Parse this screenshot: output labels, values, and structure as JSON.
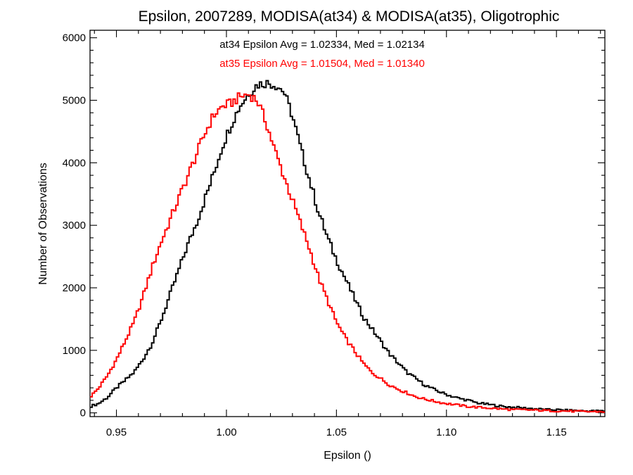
{
  "chart_data": {
    "type": "histogram-step",
    "title": "Epsilon, 2007289, MODISA(at34) & MODISA(at35), Oligotrophic",
    "xlabel": "Epsilon ()",
    "ylabel": "Number of Observations",
    "xlim": [
      0.938,
      1.172
    ],
    "ylim": [
      -60,
      6120
    ],
    "xticks": [
      {
        "value": 0.95,
        "label": "0.95"
      },
      {
        "value": 1.0,
        "label": "1.00"
      },
      {
        "value": 1.05,
        "label": "1.05"
      },
      {
        "value": 1.1,
        "label": "1.10"
      },
      {
        "value": 1.15,
        "label": "1.15"
      }
    ],
    "yticks": [
      {
        "value": 0,
        "label": "0"
      },
      {
        "value": 1000,
        "label": "1000"
      },
      {
        "value": 2000,
        "label": "2000"
      },
      {
        "value": 3000,
        "label": "3000"
      },
      {
        "value": 4000,
        "label": "4000"
      },
      {
        "value": 5000,
        "label": "5000"
      },
      {
        "value": 6000,
        "label": "6000"
      }
    ],
    "bin_width": 0.001,
    "annotations": [
      {
        "text": "at34 Epsilon Avg = 1.02334, Med = 1.02134",
        "color": "#000000"
      },
      {
        "text": "at35 Epsilon Avg = 1.01504, Med = 1.01340",
        "color": "#ff0000"
      }
    ],
    "series": [
      {
        "color": "#000000",
        "x": [
          0.938,
          0.942,
          0.946,
          0.95,
          0.954,
          0.958,
          0.962,
          0.966,
          0.97,
          0.974,
          0.978,
          0.982,
          0.986,
          0.99,
          0.994,
          0.998,
          1.002,
          1.006,
          1.01,
          1.014,
          1.018,
          1.022,
          1.026,
          1.03,
          1.034,
          1.038,
          1.042,
          1.046,
          1.05,
          1.054,
          1.058,
          1.062,
          1.066,
          1.07,
          1.074,
          1.078,
          1.082,
          1.086,
          1.09,
          1.094,
          1.098,
          1.102,
          1.106,
          1.11,
          1.114,
          1.118,
          1.122,
          1.126,
          1.13,
          1.134,
          1.138,
          1.142,
          1.146,
          1.15,
          1.154,
          1.158,
          1.162,
          1.166,
          1.172
        ],
        "y": [
          100,
          150,
          250,
          400,
          520,
          650,
          850,
          1100,
          1450,
          1850,
          2250,
          2650,
          3000,
          3400,
          3800,
          4250,
          4600,
          4900,
          5100,
          5250,
          5280,
          5250,
          5150,
          4750,
          4200,
          3700,
          3200,
          2800,
          2450,
          2150,
          1850,
          1550,
          1350,
          1150,
          950,
          800,
          650,
          550,
          450,
          380,
          320,
          270,
          230,
          200,
          160,
          140,
          120,
          100,
          90,
          80,
          70,
          60,
          50,
          50,
          40,
          40,
          30,
          30,
          30
        ]
      },
      {
        "color": "#ff0000",
        "x": [
          0.938,
          0.942,
          0.946,
          0.95,
          0.954,
          0.958,
          0.962,
          0.966,
          0.97,
          0.974,
          0.978,
          0.982,
          0.986,
          0.99,
          0.994,
          0.998,
          1.002,
          1.006,
          1.01,
          1.014,
          1.018,
          1.022,
          1.026,
          1.03,
          1.034,
          1.038,
          1.042,
          1.046,
          1.05,
          1.054,
          1.058,
          1.062,
          1.066,
          1.07,
          1.074,
          1.078,
          1.082,
          1.086,
          1.09,
          1.094,
          1.098,
          1.102,
          1.106,
          1.11,
          1.114,
          1.118,
          1.122,
          1.126,
          1.13,
          1.134,
          1.138,
          1.142,
          1.146,
          1.15,
          1.154,
          1.158,
          1.162,
          1.166,
          1.172
        ],
        "y": [
          250,
          400,
          600,
          850,
          1150,
          1450,
          1850,
          2300,
          2700,
          3050,
          3400,
          3750,
          4100,
          4450,
          4750,
          4900,
          4950,
          5050,
          5100,
          5000,
          4650,
          4200,
          3800,
          3400,
          3000,
          2600,
          2150,
          1800,
          1450,
          1200,
          1000,
          800,
          650,
          550,
          450,
          380,
          320,
          260,
          220,
          190,
          160,
          140,
          120,
          100,
          90,
          80,
          70,
          60,
          50,
          50,
          45,
          40,
          35,
          30,
          30,
          25,
          20,
          20,
          20
        ]
      }
    ]
  }
}
